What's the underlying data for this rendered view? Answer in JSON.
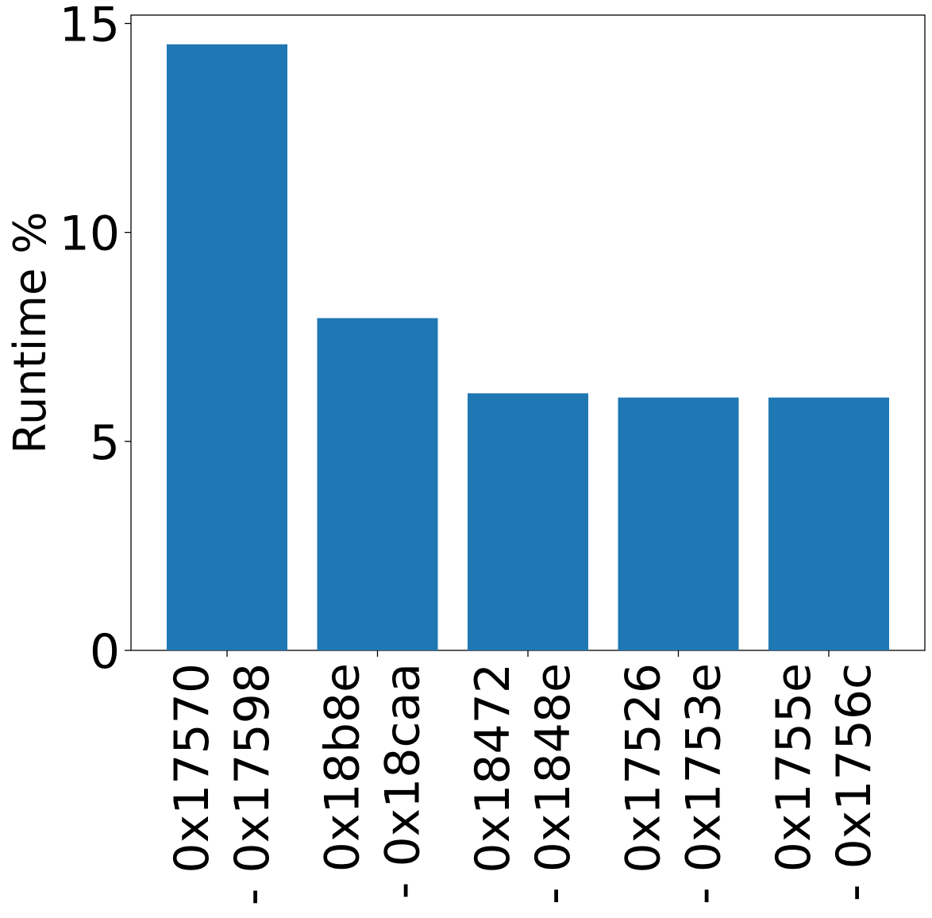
{
  "chart_data": {
    "type": "bar",
    "categories": [
      [
        "0x17570",
        "- 0x17598"
      ],
      [
        "0x18b8e",
        "- 0x18caa"
      ],
      [
        "0x18472",
        "- 0x1848e"
      ],
      [
        "0x17526",
        "- 0x1753e"
      ],
      [
        "0x1755e",
        "- 0x1756c"
      ]
    ],
    "values": [
      14.5,
      7.95,
      6.15,
      6.05,
      6.05
    ],
    "title": "",
    "xlabel": "",
    "ylabel": "Runtime %",
    "ylim": [
      0,
      15.2
    ],
    "yticks": [
      0,
      5,
      10,
      15
    ],
    "ytick_labels": [
      "0",
      "5",
      "10",
      "15"
    ],
    "grid": false,
    "colors": {
      "bar": "#1f77b4",
      "axis": "#000000",
      "background": "#ffffff"
    }
  }
}
